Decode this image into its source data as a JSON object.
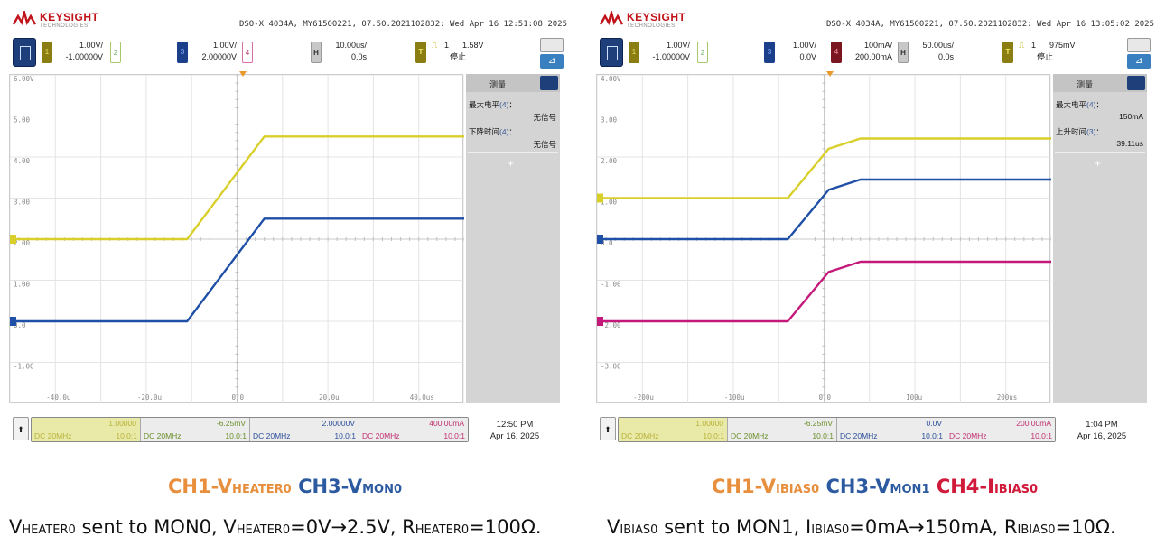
{
  "colors": {
    "ch1": "#d9cf2a",
    "ch3": "#1f4fa6",
    "ch4": "#c4197a",
    "trigger": "#e89a2a",
    "brand": "#c0141a"
  },
  "left": {
    "brand": {
      "name": "KEYSIGHT",
      "sub": "TECHNOLOGIES"
    },
    "instrument": "DSO-X 4034A, MY61500221, 07.50.2021102832: Wed Apr 16 12:51:08 2025",
    "channels": [
      {
        "num": "1",
        "scale": "1.00V/",
        "offset": "-1.00000V"
      },
      {
        "num": "2",
        "scale": "",
        "offset": ""
      },
      {
        "num": "3",
        "scale": "1.00V/",
        "offset": "2.00000V"
      },
      {
        "num": "4",
        "scale": "",
        "offset": ""
      }
    ],
    "horizontal": {
      "key": "H",
      "scale": "10.00us/",
      "delay": "0.0s"
    },
    "trigger": {
      "key": "T",
      "source": "1",
      "level": "1.58V",
      "state": "停止"
    },
    "measure": {
      "title": "测量",
      "items": [
        {
          "label": "最大电平",
          "ch": "(4)",
          "suffix": "：",
          "value": "无信号"
        },
        {
          "label": "下降时间",
          "ch": "(4)",
          "suffix": "：",
          "value": "无信号"
        }
      ],
      "add": "+"
    },
    "y_tick_labels": [
      "6.00V",
      "5.00",
      "4.00",
      "3.00",
      "2.00",
      "1.00",
      "0.0",
      "-1.00"
    ],
    "x_tick_labels": [
      "-40.0u",
      "-20.0u",
      "0.0",
      "20.0u",
      "40.0us"
    ],
    "footer": {
      "cells": [
        {
          "top": "1.00000",
          "bl": "DC 20MHz",
          "br": "10.0:1"
        },
        {
          "top": "-6.25mV",
          "bl": "DC 20MHz",
          "br": "10.0:1"
        },
        {
          "top": "2.00000V",
          "bl": "DC 20MHz",
          "br": "10.0:1"
        },
        {
          "top": "400.00mA",
          "bl": "DC 20MHz",
          "br": "10.0:1"
        }
      ],
      "time": "12:50 PM",
      "date": "Apr 16, 2025"
    },
    "legend": {
      "ch1_prefix": "CH1-V",
      "ch1_sub": "HEATER0",
      "ch3_prefix": "CH3-V",
      "ch3_sub": "MON0"
    },
    "caption": {
      "v": "V",
      "s1": "HEATER0",
      "t1": " sent to MON0, V",
      "s2": "HEATER0",
      "t2": "=0V→2.5V, R",
      "s3": "HEATER0",
      "t3": "=100Ω."
    }
  },
  "right": {
    "brand": {
      "name": "KEYSIGHT",
      "sub": "TECHNOLOGIES"
    },
    "instrument": "DSO-X 4034A, MY61500221, 07.50.2021102832: Wed Apr 16 13:05:02 2025",
    "channels": [
      {
        "num": "1",
        "scale": "1.00V/",
        "offset": "-1.00000V"
      },
      {
        "num": "2",
        "scale": "",
        "offset": ""
      },
      {
        "num": "3",
        "scale": "1.00V/",
        "offset": "0.0V"
      },
      {
        "num": "4",
        "scale": "100mA/",
        "offset": "200.00mA"
      }
    ],
    "horizontal": {
      "key": "H",
      "scale": "50.00us/",
      "delay": "0.0s"
    },
    "trigger": {
      "key": "T",
      "source": "1",
      "level": "975mV",
      "state": "停止"
    },
    "measure": {
      "title": "测量",
      "items": [
        {
          "label": "最大电平",
          "ch": "(4)",
          "suffix": "：",
          "value": "150mA"
        },
        {
          "label": "上升时间",
          "ch": "(3)",
          "suffix": "：",
          "value": "39.11us"
        }
      ],
      "add": "+"
    },
    "y_tick_labels": [
      "4.00V",
      "3.00",
      "2.00",
      "1.00",
      "0.0",
      "-1.00",
      "-2.00",
      "-3.00"
    ],
    "x_tick_labels": [
      "-200u",
      "-100u",
      "0.0",
      "100u",
      "200us"
    ],
    "footer": {
      "cells": [
        {
          "top": "1.00000",
          "bl": "DC 20MHz",
          "br": "10.0:1"
        },
        {
          "top": "-6.25mV",
          "bl": "DC 20MHz",
          "br": "10.0:1"
        },
        {
          "top": "0.0V",
          "bl": "DC 20MHz",
          "br": "10.0:1"
        },
        {
          "top": "200.00mA",
          "bl": "DC 20MHz",
          "br": "10.0:1"
        }
      ],
      "time": "1:04 PM",
      "date": "Apr 16, 2025"
    },
    "legend": {
      "ch1_prefix": "CH1-V",
      "ch1_sub": "IBIAS0",
      "ch3_prefix": "CH3-V",
      "ch3_sub": "MON1",
      "ch4_prefix": "CH4-I",
      "ch4_sub": "IBIAS0"
    },
    "caption": {
      "v": "V",
      "s1": "IBIAS0",
      "t1": " sent to MON1, I",
      "s2": "IBIAS0",
      "t2": "=0mA→150mA, R",
      "s3": "IBIAS0",
      "t3": "=10Ω."
    }
  },
  "chart_data": [
    {
      "type": "line",
      "x_unit": "us",
      "xlim": [
        -50,
        50
      ],
      "ylim": [
        -2,
        6
      ],
      "grid": true,
      "series": [
        {
          "channel": "1",
          "color": "#d9cf2a",
          "x": [
            -50,
            -11,
            6,
            50
          ],
          "y": [
            2.0,
            2.0,
            4.5,
            4.5
          ]
        },
        {
          "channel": "3",
          "color": "#1f4fa6",
          "x": [
            -50,
            -11,
            6,
            50
          ],
          "y": [
            0.0,
            0.0,
            2.5,
            2.5
          ]
        }
      ]
    },
    {
      "type": "line",
      "x_unit": "us",
      "xlim": [
        -250,
        250
      ],
      "ylim": [
        -4,
        4
      ],
      "grid": true,
      "series": [
        {
          "channel": "1",
          "color": "#d9cf2a",
          "x": [
            -250,
            -40,
            5,
            40,
            250
          ],
          "y": [
            1.0,
            1.0,
            2.2,
            2.45,
            2.45
          ]
        },
        {
          "channel": "3",
          "color": "#1f4fa6",
          "x": [
            -250,
            -40,
            5,
            40,
            250
          ],
          "y": [
            0.0,
            0.0,
            1.2,
            1.45,
            1.45
          ]
        },
        {
          "channel": "4",
          "color": "#c4197a",
          "x": [
            -250,
            -40,
            5,
            40,
            250
          ],
          "y": [
            -2.0,
            -2.0,
            -0.8,
            -0.55,
            -0.55
          ]
        }
      ]
    }
  ]
}
